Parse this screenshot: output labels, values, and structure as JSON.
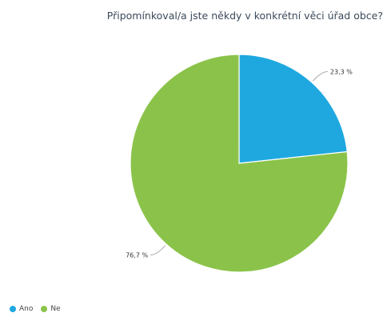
{
  "chart_data": {
    "type": "pie",
    "title": "Připomínkoval/a jste někdy v konkrétní věci úřad obce?",
    "categories": [
      "Ano",
      "Ne"
    ],
    "values": [
      23.3,
      76.7
    ],
    "data_labels": [
      "23,3 %",
      "76,7 %"
    ],
    "colors": [
      "#1fa8e0",
      "#8bc34a"
    ],
    "legend": {
      "position": "bottom-left",
      "items": [
        {
          "label": "Ano",
          "color": "#1fa8e0"
        },
        {
          "label": "Ne",
          "color": "#8bc34a"
        }
      ]
    }
  }
}
